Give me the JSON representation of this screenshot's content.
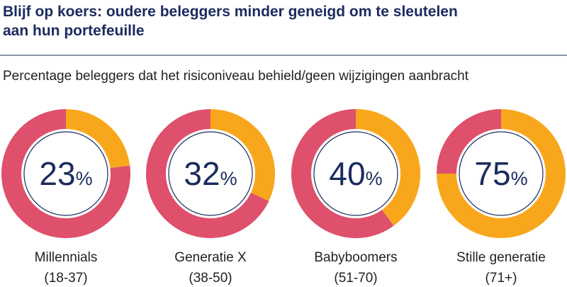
{
  "title_lines": [
    "Blijf op koers: oudere beleggers minder geneigd om te sleutelen",
    "aan hun portefeuille"
  ],
  "subtitle": "Percentage beleggers dat het risiconiveau behield/geen wijzigingen aanbracht",
  "chart_data": [
    {
      "type": "donut",
      "label": "Millennials",
      "sublabel": "(18-37)",
      "values": [
        23,
        77
      ],
      "colors": [
        "#f8a71c",
        "#de506b"
      ],
      "unit": "%"
    },
    {
      "type": "donut",
      "label": "Generatie X",
      "sublabel": "(38-50)",
      "values": [
        32,
        68
      ],
      "colors": [
        "#f8a71c",
        "#de506b"
      ],
      "unit": "%"
    },
    {
      "type": "donut",
      "label": "Babyboomers",
      "sublabel": "(51-70)",
      "values": [
        40,
        60
      ],
      "colors": [
        "#f8a71c",
        "#de506b"
      ],
      "unit": "%"
    },
    {
      "type": "donut",
      "label": "Stille generatie",
      "sublabel": "(71+)",
      "values": [
        75,
        25
      ],
      "colors": [
        "#f8a71c",
        "#de506b"
      ],
      "unit": "%"
    }
  ]
}
